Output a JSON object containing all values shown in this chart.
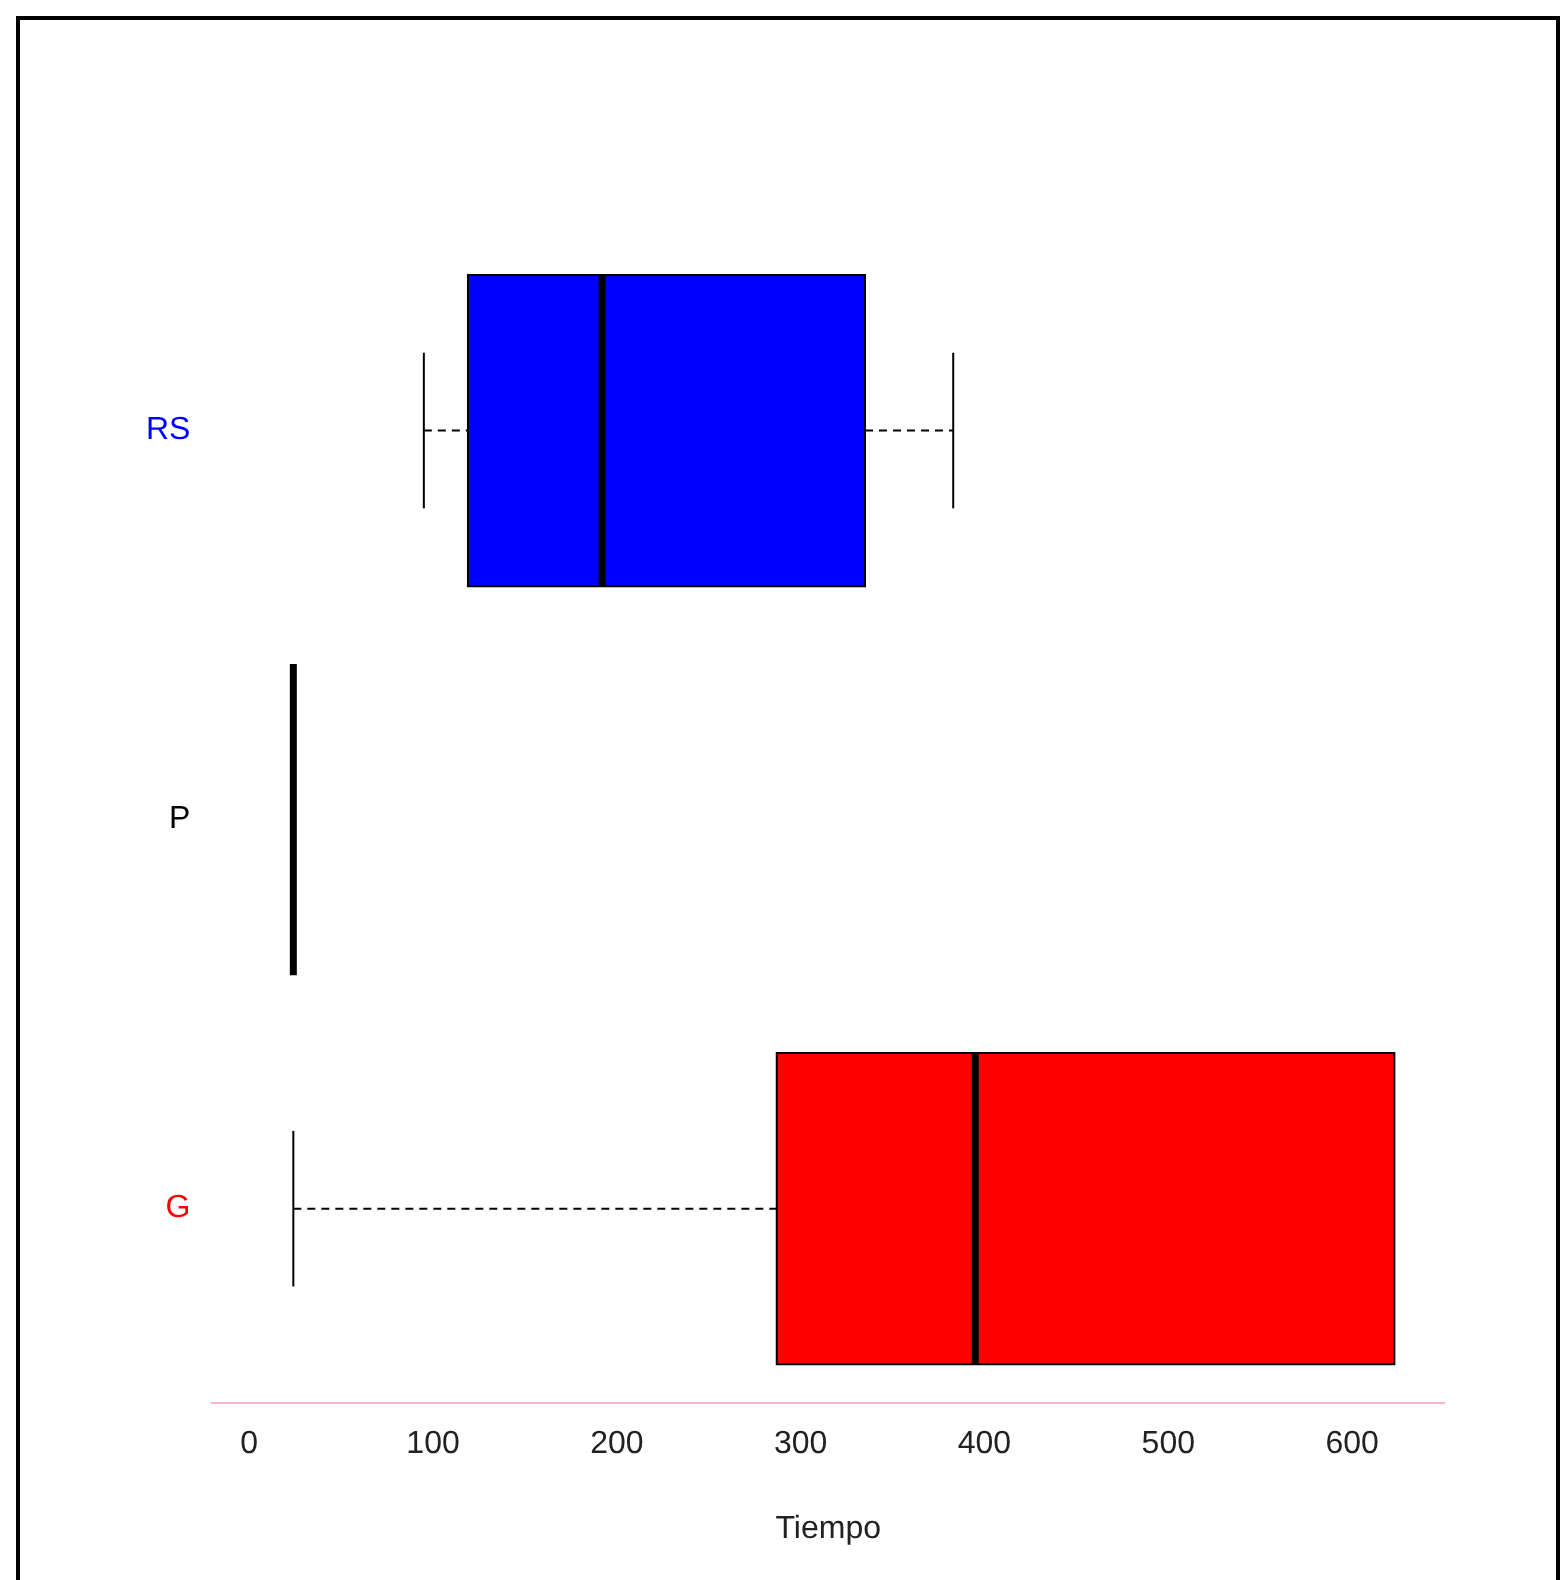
{
  "chart_data": {
    "type": "box",
    "orientation": "horizontal",
    "xlabel": "Tiempo",
    "categories": [
      "RS",
      "P",
      "G"
    ],
    "colors": [
      "#0000ff",
      "#000000",
      "#ff0000"
    ],
    "boxes": [
      {
        "low": 95,
        "q1": 119,
        "median": 192,
        "q3": 335,
        "high": 383
      },
      {
        "low": 24,
        "q1": 24,
        "median": 24,
        "q3": 24,
        "high": 24
      },
      {
        "low": 24,
        "q1": 287,
        "median": 395,
        "q3": 623,
        "high": 623
      }
    ],
    "xlim": [
      -20,
      650
    ],
    "xticks": [
      0,
      100,
      200,
      300,
      400,
      500,
      600
    ]
  }
}
